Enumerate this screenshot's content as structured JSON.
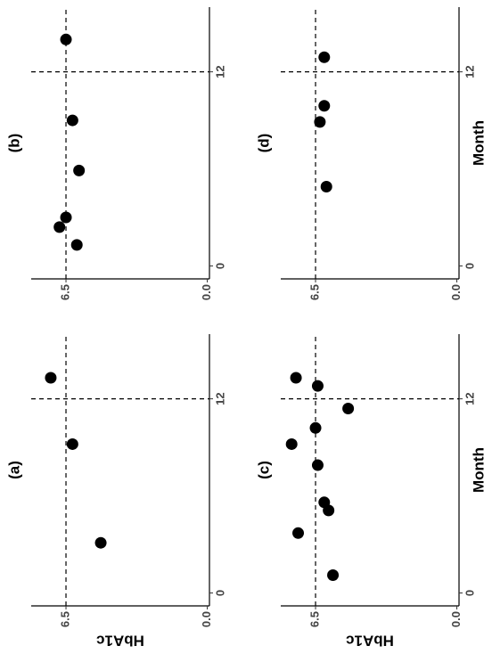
{
  "chart_data": [
    {
      "type": "scatter",
      "title": "(a)",
      "ylabel": "HbA1c",
      "color": "#000000",
      "x": [
        13.3,
        9.2,
        3.1
      ],
      "y": [
        7.2,
        6.2,
        4.9
      ],
      "xlim": [
        -0.8,
        16
      ],
      "ylim": [
        -0.1,
        8.1
      ],
      "xticks": [
        0,
        12
      ],
      "yticks": [
        {
          "value": 0,
          "label": "0.0"
        },
        6.5
      ],
      "hline": 6.5,
      "vline": 12
    },
    {
      "type": "scatter",
      "title": "(b)",
      "color": "#000000",
      "x": [
        14.0,
        9.0,
        5.9,
        3.0,
        2.4,
        1.3
      ],
      "y": [
        6.5,
        6.2,
        5.9,
        6.5,
        6.8,
        6.0
      ],
      "xlim": [
        -0.8,
        16
      ],
      "ylim": [
        -0.1,
        8.1
      ],
      "xticks": [
        0,
        12
      ],
      "yticks": [
        {
          "value": 0,
          "label": "0.0"
        },
        6.5
      ],
      "hline": 6.5,
      "vline": 12
    },
    {
      "type": "scatter",
      "title": "(c)",
      "ylabel": "HbA1c",
      "xlabel": "Month",
      "color": "#000000",
      "x": [
        13.3,
        12.8,
        11.4,
        10.2,
        9.2,
        7.9,
        5.6,
        5.1,
        3.7,
        1.1
      ],
      "y": [
        7.4,
        6.4,
        5.0,
        6.5,
        7.6,
        6.4,
        6.1,
        5.9,
        7.3,
        5.7
      ],
      "xlim": [
        -0.8,
        16
      ],
      "ylim": [
        -0.1,
        8.1
      ],
      "xticks": [
        0,
        12
      ],
      "yticks": [
        {
          "value": 0,
          "label": "0.0"
        },
        6.5
      ],
      "hline": 6.5,
      "vline": 12
    },
    {
      "type": "scatter",
      "title": "(d)",
      "xlabel": "Month",
      "color": "#000000",
      "x": [
        12.9,
        9.9,
        8.9,
        4.9
      ],
      "y": [
        6.1,
        6.1,
        6.3,
        6.0
      ],
      "xlim": [
        -0.8,
        16
      ],
      "ylim": [
        -0.1,
        8.1
      ],
      "xticks": [
        0,
        12
      ],
      "yticks": [
        {
          "value": 0,
          "label": "0.0"
        },
        6.5
      ],
      "hline": 6.5,
      "vline": 12
    }
  ]
}
